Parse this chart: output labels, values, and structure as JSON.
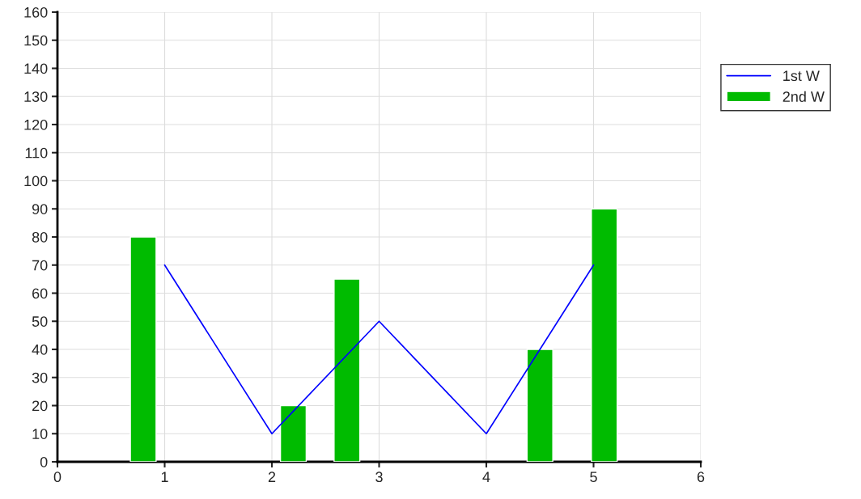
{
  "chart_data": {
    "type": "line",
    "series": [
      {
        "name": "1st W",
        "color": "#0000ff",
        "x": [
          1,
          2,
          3,
          4,
          5
        ],
        "values": [
          70,
          10,
          50,
          10,
          70
        ]
      },
      {
        "name": "2nd W",
        "type": "bar",
        "color": "#00bb00",
        "x": [
          0.8,
          2.2,
          2.7,
          4.5,
          5.1
        ],
        "values": [
          80,
          20,
          65,
          40,
          90
        ]
      }
    ],
    "xlim": [
      0,
      6
    ],
    "xticks": [
      0,
      1,
      2,
      3,
      4,
      5,
      6
    ],
    "ylim": [
      0,
      160
    ],
    "yticks": [
      0,
      10,
      20,
      30,
      40,
      50,
      60,
      70,
      80,
      90,
      100,
      110,
      120,
      130,
      140,
      150,
      160
    ],
    "grid": true,
    "legend": "right"
  }
}
